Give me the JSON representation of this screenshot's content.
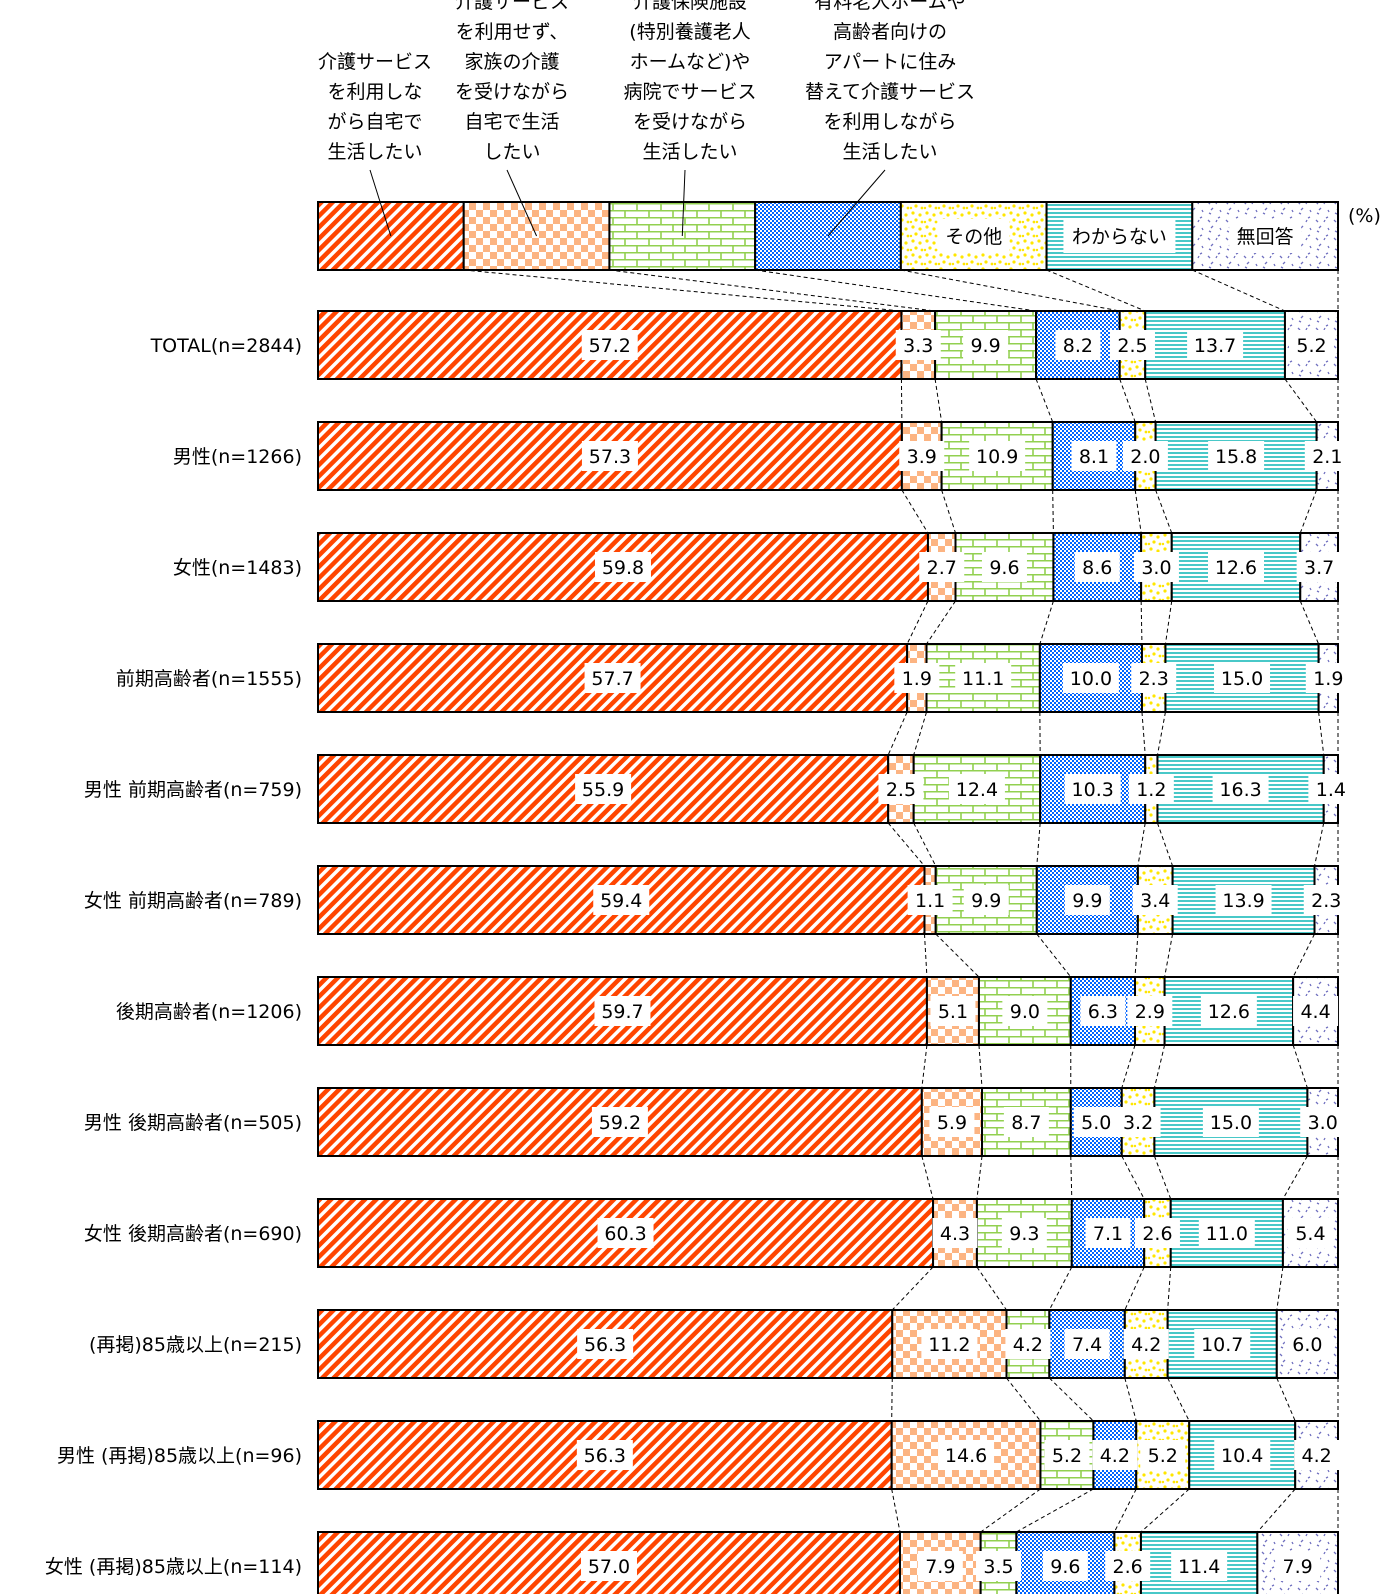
{
  "chart_data": {
    "type": "stacked-bar-100",
    "unit_label": "(%)",
    "legend_placement": "top",
    "categories_legend": [
      {
        "lines": [
          "介護サービス",
          "を利用しな",
          "がら自宅で",
          "生活したい"
        ],
        "inline": ""
      },
      {
        "lines": [
          "介護サービス",
          "を利用せず、",
          "家族の介護",
          "を受けながら",
          "自宅で生活",
          "したい"
        ],
        "inline": ""
      },
      {
        "lines": [
          "介護保険施設",
          "(特別養護老人",
          "ホームなど)や",
          "病院でサービス",
          "を受けながら",
          "生活したい"
        ],
        "inline": ""
      },
      {
        "lines": [
          "有料老人ホームや",
          "高齢者向けの",
          "アパートに住み",
          "替えて介護サービス",
          "を利用しながら",
          "生活したい"
        ],
        "inline": ""
      },
      {
        "lines": [],
        "inline": "その他"
      },
      {
        "lines": [],
        "inline": "わからない"
      },
      {
        "lines": [],
        "inline": "無回答"
      }
    ],
    "series_colors": [
      "#ff4500",
      "#fcb482",
      "#92d050",
      "#0064ff",
      "#ffe600",
      "#48c8c8",
      "#7070c0"
    ],
    "rows": [
      {
        "label": "TOTAL(n=2844)",
        "values": [
          57.2,
          3.3,
          9.9,
          8.2,
          2.5,
          13.7,
          5.2
        ]
      },
      {
        "label": "男性(n=1266)",
        "values": [
          57.3,
          3.9,
          10.9,
          8.1,
          2.0,
          15.8,
          2.1
        ]
      },
      {
        "label": "女性(n=1483)",
        "values": [
          59.8,
          2.7,
          9.6,
          8.6,
          3.0,
          12.6,
          3.7
        ]
      },
      {
        "label": "前期高齢者(n=1555)",
        "values": [
          57.7,
          1.9,
          11.1,
          10.0,
          2.3,
          15.0,
          1.9
        ]
      },
      {
        "label": "男性 前期高齢者(n=759)",
        "values": [
          55.9,
          2.5,
          12.4,
          10.3,
          1.2,
          16.3,
          1.4
        ]
      },
      {
        "label": "女性 前期高齢者(n=789)",
        "values": [
          59.4,
          1.1,
          9.9,
          9.9,
          3.4,
          13.9,
          2.3
        ]
      },
      {
        "label": "後期高齢者(n=1206)",
        "values": [
          59.7,
          5.1,
          9.0,
          6.3,
          2.9,
          12.6,
          4.4
        ]
      },
      {
        "label": "男性 後期高齢者(n=505)",
        "values": [
          59.2,
          5.9,
          8.7,
          5.0,
          3.2,
          15.0,
          3.0
        ]
      },
      {
        "label": "女性 後期高齢者(n=690)",
        "values": [
          60.3,
          4.3,
          9.3,
          7.1,
          2.6,
          11.0,
          5.4
        ]
      },
      {
        "label": "(再掲)85歳以上(n=215)",
        "values": [
          56.3,
          11.2,
          4.2,
          7.4,
          4.2,
          10.7,
          6.0
        ]
      },
      {
        "label": "男性 (再掲)85歳以上(n=96)",
        "values": [
          56.3,
          14.6,
          5.2,
          4.2,
          5.2,
          10.4,
          4.2
        ]
      },
      {
        "label": "女性 (再掲)85歳以上(n=114)",
        "values": [
          57.0,
          7.9,
          3.5,
          9.6,
          2.6,
          11.4,
          7.9
        ]
      }
    ]
  }
}
